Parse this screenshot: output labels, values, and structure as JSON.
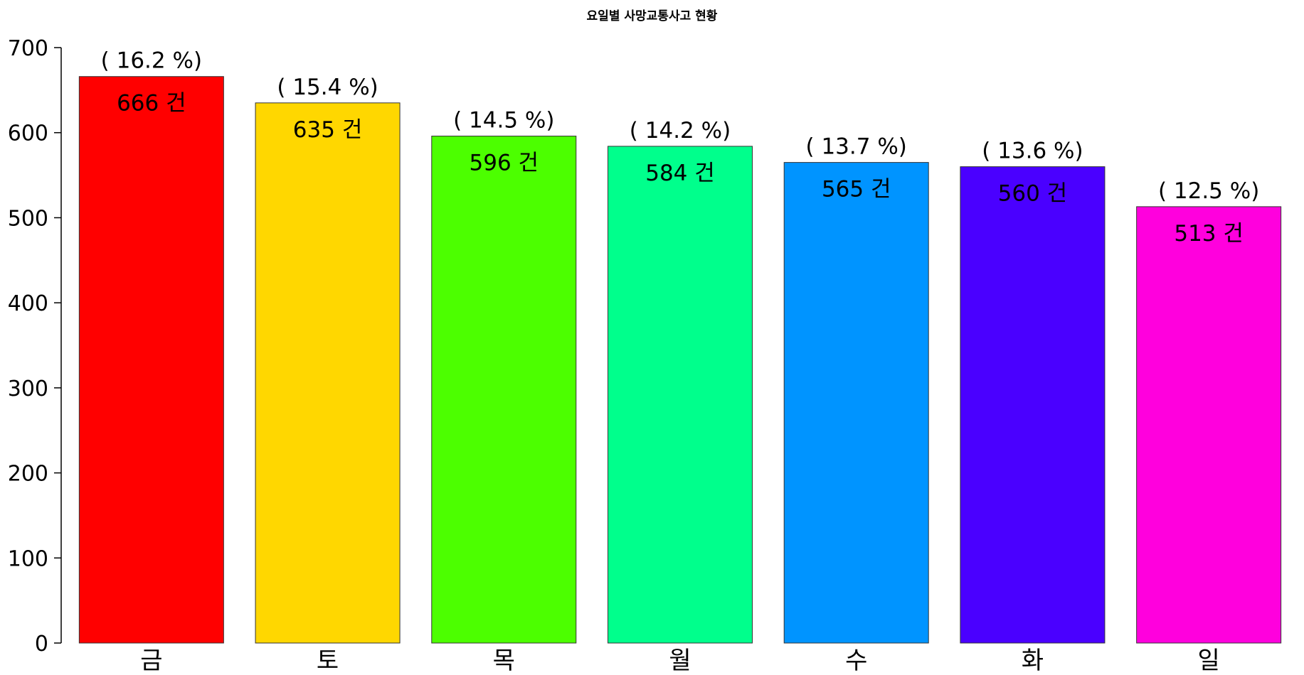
{
  "chart_data": {
    "type": "bar",
    "title": "요일별 사망교통사고 현황",
    "xlabel": "",
    "ylabel": "",
    "ylim": [
      0,
      700
    ],
    "yticks": [
      0,
      100,
      200,
      300,
      400,
      500,
      600,
      700
    ],
    "categories": [
      "금",
      "토",
      "목",
      "월",
      "수",
      "화",
      "일"
    ],
    "values": [
      666,
      635,
      596,
      584,
      565,
      560,
      513
    ],
    "value_labels": [
      "666 건",
      "635 건",
      "596 건",
      "584 건",
      "565 건",
      "560 건",
      "513 건"
    ],
    "percent_labels": [
      "( 16.2 %)",
      "( 15.4 %)",
      "( 14.5 %)",
      "( 14.2 %)",
      "( 13.7 %)",
      "( 13.6 %)",
      "( 12.5 %)"
    ],
    "colors": [
      "#FF0000",
      "#FFD700",
      "#4CFF00",
      "#00FF8C",
      "#0094FF",
      "#4A00FF",
      "#FF00DD"
    ],
    "grid": false,
    "legend": "none"
  }
}
